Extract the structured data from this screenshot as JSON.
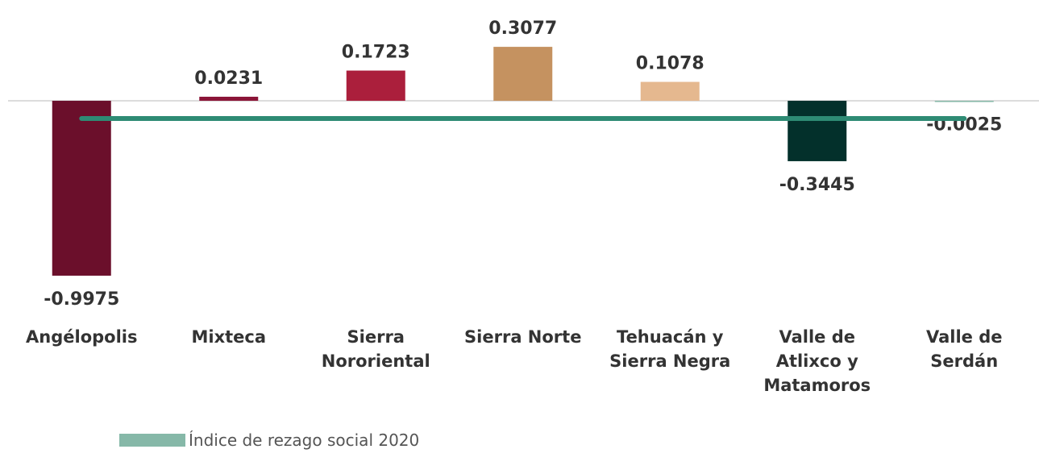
{
  "chart_data": {
    "type": "bar",
    "categories": [
      "Angélopolis",
      "Mixteca",
      "Sierra Nororiental",
      "Sierra Norte",
      "Tehuacán y Sierra Negra",
      "Valle de Atlixco y Matamoros",
      "Valle de Serdán"
    ],
    "series": [
      {
        "name": "Índice de rezago social 2020",
        "color": "#86b8a8",
        "colors": [
          "#6b0f2b",
          "#8b1538",
          "#ab1f3c",
          "#c59260",
          "#e5b88f",
          "#03302b",
          "#86b8a8"
        ],
        "values": [
          -0.9975,
          0.0231,
          0.1723,
          0.3077,
          0.1078,
          -0.3445,
          -0.0025
        ]
      }
    ],
    "reference_line": {
      "value": -0.101,
      "color": "#2e8b74"
    },
    "ylim": [
      -1.2,
      0.55
    ]
  }
}
